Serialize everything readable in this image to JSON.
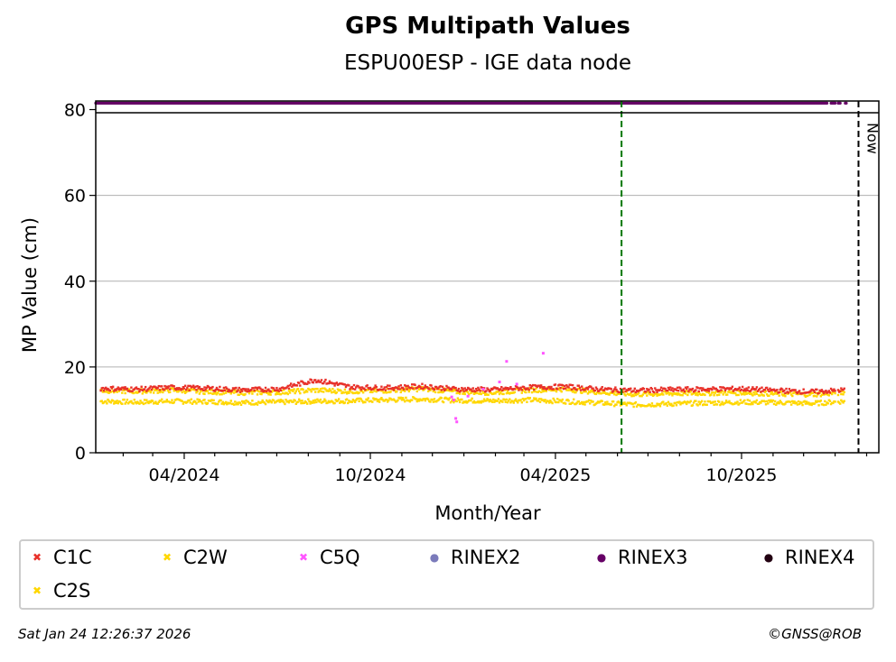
{
  "header": {
    "title": "GPS Multipath Values",
    "subtitle": "ESPU00ESP - IGE data node"
  },
  "footer": {
    "timestamp": "Sat Jan 24 12:26:37 2026",
    "copyright": "©GNSS@ROB"
  },
  "chart_data": {
    "type": "scatter",
    "title": "GPS Multipath Values",
    "subtitle": "ESPU00ESP - IGE data node",
    "xlabel": "Month/Year",
    "ylabel": "MP Value (cm)",
    "ylim": [
      0,
      82
    ],
    "xlim": [
      "2024-01-05",
      "2026-02-13"
    ],
    "x_ticks": [
      "04/2024",
      "10/2024",
      "04/2025",
      "10/2025"
    ],
    "y_ticks": [
      0,
      20,
      40,
      60,
      80
    ],
    "grid": "horizontal",
    "legend_position": "bottom",
    "vertical_lines": [
      {
        "date": "2025-06-05",
        "color": "#007700",
        "style": "dashed",
        "label": ""
      },
      {
        "date": "2026-01-24",
        "color": "#000000",
        "style": "dashed",
        "label": "Now"
      }
    ],
    "series": [
      {
        "name": "C1C",
        "color": "#e8312a",
        "marker": "x",
        "points": [
          [
            "2024-01-10",
            15.0
          ],
          [
            "2024-02-15",
            14.8
          ],
          [
            "2024-03-20",
            15.2
          ],
          [
            "2024-04-25",
            15.0
          ],
          [
            "2024-05-30",
            14.6
          ],
          [
            "2024-07-04",
            14.9
          ],
          [
            "2024-08-08",
            17.0
          ],
          [
            "2024-09-12",
            15.3
          ],
          [
            "2024-10-17",
            15.1
          ],
          [
            "2024-11-21",
            15.5
          ],
          [
            "2024-12-26",
            14.8
          ],
          [
            "2025-01-30",
            14.7
          ],
          [
            "2025-03-06",
            15.2
          ],
          [
            "2025-04-10",
            15.4
          ],
          [
            "2025-05-15",
            14.8
          ],
          [
            "2025-06-19",
            14.5
          ],
          [
            "2025-07-24",
            14.7
          ],
          [
            "2025-08-28",
            14.8
          ],
          [
            "2025-10-02",
            14.9
          ],
          [
            "2025-11-06",
            14.5
          ],
          [
            "2025-12-11",
            14.2
          ],
          [
            "2026-01-10",
            14.6
          ]
        ]
      },
      {
        "name": "C2W",
        "color": "#ffd700",
        "marker": "x",
        "points": [
          [
            "2024-01-10",
            14.5
          ],
          [
            "2024-02-15",
            14.3
          ],
          [
            "2024-03-20",
            14.6
          ],
          [
            "2024-04-25",
            14.2
          ],
          [
            "2024-05-30",
            14.0
          ],
          [
            "2024-07-04",
            14.1
          ],
          [
            "2024-08-08",
            14.6
          ],
          [
            "2024-09-12",
            14.3
          ],
          [
            "2024-10-17",
            14.5
          ],
          [
            "2024-11-21",
            14.9
          ],
          [
            "2024-12-26",
            14.2
          ],
          [
            "2025-01-30",
            14.0
          ],
          [
            "2025-03-06",
            14.6
          ],
          [
            "2025-04-10",
            14.8
          ],
          [
            "2025-05-15",
            14.1
          ],
          [
            "2025-06-19",
            13.6
          ],
          [
            "2025-07-24",
            13.8
          ],
          [
            "2025-08-28",
            13.9
          ],
          [
            "2025-10-02",
            14.0
          ],
          [
            "2025-11-06",
            13.7
          ],
          [
            "2025-12-11",
            13.6
          ],
          [
            "2026-01-10",
            14.0
          ]
        ]
      },
      {
        "name": "C5Q",
        "color": "#ff55ff",
        "marker": "x",
        "points": [
          [
            "2024-12-20",
            13.0
          ],
          [
            "2024-12-22",
            12.3
          ],
          [
            "2024-12-24",
            8.0
          ],
          [
            "2024-12-25",
            7.2
          ],
          [
            "2025-01-05",
            13.2
          ],
          [
            "2025-01-20",
            14.8
          ],
          [
            "2025-02-05",
            16.5
          ],
          [
            "2025-02-12",
            21.3
          ],
          [
            "2025-02-22",
            16.0
          ],
          [
            "2025-03-20",
            23.2
          ]
        ]
      },
      {
        "name": "RINEX2",
        "color": "#7b7bbb",
        "marker": "o",
        "points": []
      },
      {
        "name": "RINEX3",
        "color": "#660066",
        "marker": "o",
        "points": "daily samples at y=81.5 from 2024-01-05 to 2026-01-12"
      },
      {
        "name": "RINEX4",
        "color": "#220011",
        "marker": "o",
        "points": []
      },
      {
        "name": "C2S",
        "color": "#ffd700",
        "marker": "x",
        "points": [
          [
            "2024-01-10",
            12.0
          ],
          [
            "2024-02-15",
            11.8
          ],
          [
            "2024-03-20",
            12.0
          ],
          [
            "2024-04-25",
            11.9
          ],
          [
            "2024-05-30",
            11.7
          ],
          [
            "2024-07-04",
            11.8
          ],
          [
            "2024-08-08",
            12.0
          ],
          [
            "2024-09-12",
            12.1
          ],
          [
            "2024-10-17",
            12.3
          ],
          [
            "2024-11-21",
            12.5
          ],
          [
            "2024-12-26",
            12.2
          ],
          [
            "2025-01-30",
            12.1
          ],
          [
            "2025-03-06",
            12.3
          ],
          [
            "2025-04-10",
            12.0
          ],
          [
            "2025-05-15",
            11.6
          ],
          [
            "2025-06-19",
            11.2
          ],
          [
            "2025-07-24",
            11.4
          ],
          [
            "2025-08-28",
            11.6
          ],
          [
            "2025-10-02",
            11.8
          ],
          [
            "2025-11-06",
            11.7
          ],
          [
            "2025-12-11",
            11.5
          ],
          [
            "2026-01-10",
            12.0
          ]
        ]
      }
    ]
  }
}
